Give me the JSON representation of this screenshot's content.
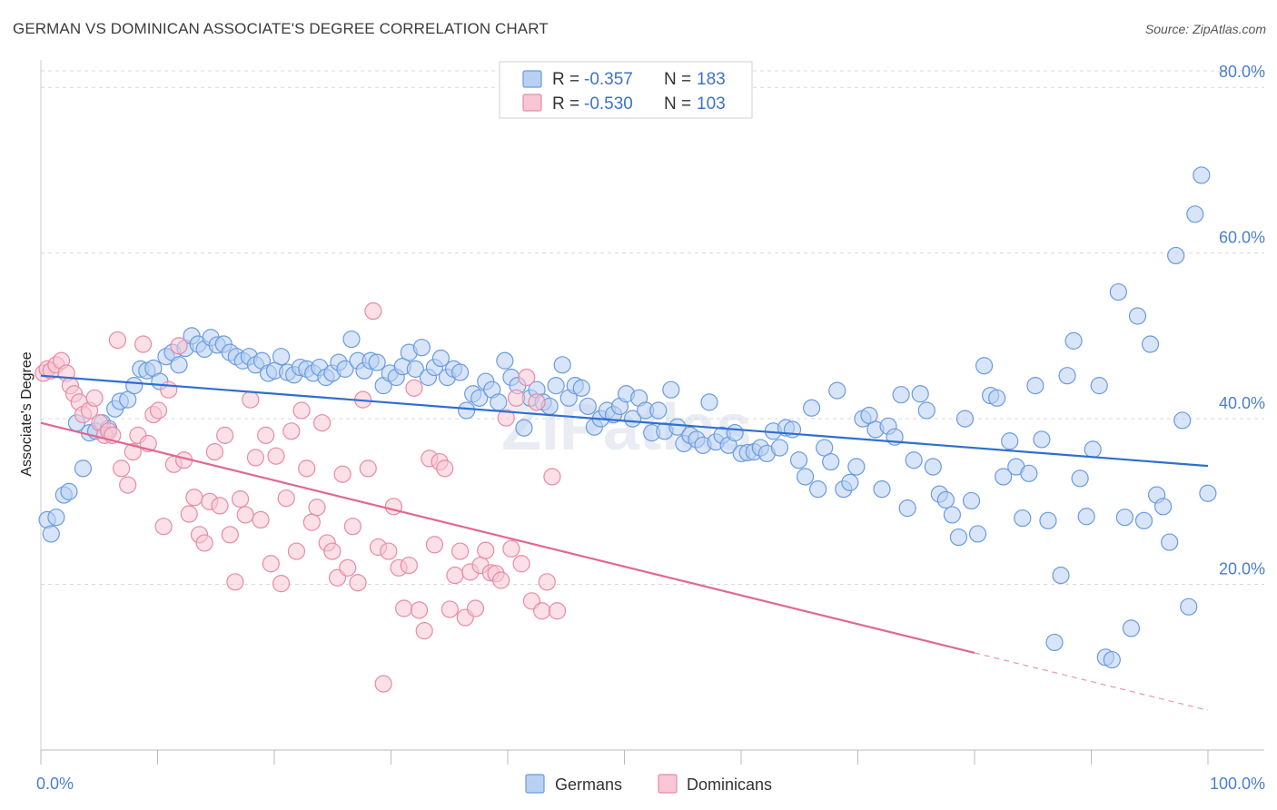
{
  "title": "GERMAN VS DOMINICAN ASSOCIATE'S DEGREE CORRELATION CHART",
  "source": "Source: ZipAtlas.com",
  "watermark": "ZIPatlas",
  "legend_top": [
    {
      "r_label": "R =",
      "r_value": "-0.357",
      "n_label": "N =",
      "n_value": "183",
      "fill": "#b8d0f2",
      "stroke": "#6a9be0"
    },
    {
      "r_label": "R =",
      "r_value": "-0.530",
      "n_label": "N =",
      "n_value": "103",
      "fill": "#f8c6d4",
      "stroke": "#e88aa6"
    }
  ],
  "legend_bottom": [
    {
      "label": "Germans",
      "fill": "#b8d0f2",
      "stroke": "#6a9be0"
    },
    {
      "label": "Dominicans",
      "fill": "#f8c6d4",
      "stroke": "#e88aa6"
    }
  ],
  "chart_data": {
    "type": "scatter",
    "ylabel": "Associate's Degree",
    "xlim": [
      0,
      100
    ],
    "ylim": [
      0,
      82
    ],
    "y_ticks": [
      {
        "value": 20,
        "label": "20.0%"
      },
      {
        "value": 40,
        "label": "40.0%"
      },
      {
        "value": 60,
        "label": "60.0%"
      },
      {
        "value": 80,
        "label": "80.0%"
      }
    ],
    "x_ticks": [
      {
        "value": 0,
        "label": "0.0%"
      },
      {
        "value": 100,
        "label": "100.0%"
      }
    ],
    "grid": true,
    "series": [
      {
        "name": "Germans",
        "color": "#6a9be0",
        "fill": "#b8d0f2",
        "trend_color": "#2f6fd0",
        "trend": {
          "x0": 0,
          "y0": 45.2,
          "x1": 100,
          "y1": 34.3,
          "solid_until": 100
        },
        "points": [
          [
            0.5,
            27.8
          ],
          [
            0.8,
            26.1
          ],
          [
            1.2,
            28.1
          ],
          [
            1.8,
            30.8
          ],
          [
            2.2,
            31.2
          ],
          [
            2.8,
            39.5
          ],
          [
            3.3,
            34.0
          ],
          [
            3.8,
            38.3
          ],
          [
            4.3,
            38.5
          ],
          [
            4.8,
            39.5
          ],
          [
            5.3,
            38.8
          ],
          [
            5.8,
            41.2
          ],
          [
            6.2,
            42.1
          ],
          [
            6.8,
            42.3
          ],
          [
            7.3,
            44.0
          ],
          [
            7.8,
            46.0
          ],
          [
            8.3,
            45.8
          ],
          [
            8.8,
            46.1
          ],
          [
            9.3,
            44.5
          ],
          [
            9.8,
            47.5
          ],
          [
            10.3,
            48.0
          ],
          [
            10.8,
            46.5
          ],
          [
            11.3,
            48.5
          ],
          [
            11.8,
            50.0
          ],
          [
            12.3,
            49.0
          ],
          [
            12.8,
            48.4
          ],
          [
            13.3,
            49.8
          ],
          [
            13.8,
            48.9
          ],
          [
            14.3,
            49.0
          ],
          [
            14.8,
            48.0
          ],
          [
            15.3,
            47.5
          ],
          [
            15.8,
            47.0
          ],
          [
            16.3,
            47.5
          ],
          [
            16.8,
            46.5
          ],
          [
            17.3,
            47.0
          ],
          [
            17.8,
            45.5
          ],
          [
            18.3,
            45.8
          ],
          [
            18.8,
            47.5
          ],
          [
            19.3,
            45.6
          ],
          [
            19.8,
            45.3
          ],
          [
            20.3,
            46.2
          ],
          [
            20.8,
            46.0
          ],
          [
            21.3,
            45.5
          ],
          [
            21.8,
            46.2
          ],
          [
            22.3,
            45.0
          ],
          [
            22.8,
            45.5
          ],
          [
            23.3,
            46.8
          ],
          [
            23.8,
            46.0
          ],
          [
            24.3,
            49.6
          ],
          [
            24.8,
            47.0
          ],
          [
            25.3,
            45.8
          ],
          [
            25.8,
            47.0
          ],
          [
            26.3,
            46.8
          ],
          [
            26.8,
            44.0
          ],
          [
            27.3,
            45.5
          ],
          [
            27.8,
            45.0
          ],
          [
            28.3,
            46.3
          ],
          [
            28.8,
            48.0
          ],
          [
            29.3,
            46.0
          ],
          [
            29.8,
            48.6
          ],
          [
            30.3,
            45.0
          ],
          [
            30.8,
            46.2
          ],
          [
            31.3,
            47.3
          ],
          [
            31.8,
            45.0
          ],
          [
            32.3,
            46.0
          ],
          [
            32.8,
            45.6
          ],
          [
            33.3,
            41.0
          ],
          [
            33.8,
            43.0
          ],
          [
            34.3,
            42.5
          ],
          [
            34.8,
            44.5
          ],
          [
            35.3,
            43.5
          ],
          [
            35.8,
            42.0
          ],
          [
            36.3,
            47.0
          ],
          [
            36.8,
            45.0
          ],
          [
            37.3,
            44.0
          ],
          [
            37.8,
            38.9
          ],
          [
            38.3,
            42.5
          ],
          [
            38.8,
            43.5
          ],
          [
            39.3,
            42.0
          ],
          [
            39.8,
            41.5
          ],
          [
            40.3,
            44.0
          ],
          [
            40.8,
            46.5
          ],
          [
            41.3,
            42.5
          ],
          [
            41.8,
            44.0
          ],
          [
            42.3,
            43.7
          ],
          [
            42.8,
            41.5
          ],
          [
            43.3,
            39.0
          ],
          [
            43.8,
            40.0
          ],
          [
            44.3,
            41.0
          ],
          [
            44.8,
            40.5
          ],
          [
            45.3,
            41.5
          ],
          [
            45.8,
            43.0
          ],
          [
            46.3,
            40.0
          ],
          [
            46.8,
            42.5
          ],
          [
            47.3,
            41.0
          ],
          [
            47.8,
            38.3
          ],
          [
            48.3,
            41.0
          ],
          [
            48.8,
            38.5
          ],
          [
            49.3,
            43.5
          ],
          [
            49.8,
            39.0
          ],
          [
            50.3,
            37.0
          ],
          [
            50.8,
            38.0
          ],
          [
            51.3,
            37.5
          ],
          [
            51.8,
            36.8
          ],
          [
            52.3,
            42.0
          ],
          [
            52.8,
            37.2
          ],
          [
            53.3,
            38.0
          ],
          [
            53.8,
            36.8
          ],
          [
            54.3,
            38.3
          ],
          [
            54.8,
            35.8
          ],
          [
            55.3,
            35.9
          ],
          [
            55.8,
            36.0
          ],
          [
            56.3,
            36.5
          ],
          [
            56.8,
            35.8
          ],
          [
            57.3,
            38.5
          ],
          [
            57.8,
            36.5
          ],
          [
            58.3,
            38.9
          ],
          [
            58.8,
            38.7
          ],
          [
            59.3,
            35.0
          ],
          [
            59.8,
            33.0
          ],
          [
            60.3,
            41.3
          ],
          [
            60.8,
            31.5
          ],
          [
            61.3,
            36.5
          ],
          [
            61.8,
            34.8
          ],
          [
            62.3,
            43.4
          ],
          [
            62.8,
            31.5
          ],
          [
            63.3,
            32.3
          ],
          [
            63.8,
            34.2
          ],
          [
            64.3,
            40.0
          ],
          [
            64.8,
            40.4
          ],
          [
            65.3,
            38.7
          ],
          [
            65.8,
            31.5
          ],
          [
            66.3,
            39.1
          ],
          [
            66.8,
            37.8
          ],
          [
            67.3,
            42.9
          ],
          [
            67.8,
            29.2
          ],
          [
            68.3,
            35.0
          ],
          [
            68.8,
            43.0
          ],
          [
            69.3,
            41.0
          ],
          [
            69.8,
            34.2
          ],
          [
            70.3,
            30.9
          ],
          [
            70.8,
            30.2
          ],
          [
            71.3,
            28.4
          ],
          [
            71.8,
            25.7
          ],
          [
            72.3,
            40.0
          ],
          [
            72.8,
            30.1
          ],
          [
            73.3,
            26.1
          ],
          [
            73.8,
            46.4
          ],
          [
            74.3,
            42.8
          ],
          [
            74.8,
            42.5
          ],
          [
            75.3,
            33.0
          ],
          [
            75.8,
            37.3
          ],
          [
            76.3,
            34.2
          ],
          [
            76.8,
            28.0
          ],
          [
            77.3,
            33.4
          ],
          [
            77.8,
            44.0
          ],
          [
            78.3,
            37.5
          ],
          [
            78.8,
            27.7
          ],
          [
            79.3,
            13.0
          ],
          [
            79.8,
            21.1
          ],
          [
            80.3,
            45.2
          ],
          [
            80.8,
            49.4
          ],
          [
            81.3,
            32.8
          ],
          [
            81.8,
            28.2
          ],
          [
            82.3,
            36.3
          ],
          [
            82.8,
            44.0
          ],
          [
            83.3,
            11.2
          ],
          [
            83.8,
            10.9
          ],
          [
            84.3,
            55.3
          ],
          [
            84.8,
            28.1
          ],
          [
            85.3,
            14.7
          ],
          [
            85.8,
            52.4
          ],
          [
            86.3,
            27.7
          ],
          [
            86.8,
            49.0
          ],
          [
            87.3,
            30.8
          ],
          [
            87.8,
            29.4
          ],
          [
            88.3,
            25.1
          ],
          [
            88.8,
            59.7
          ],
          [
            89.3,
            39.8
          ],
          [
            89.8,
            17.3
          ],
          [
            90.3,
            64.7
          ],
          [
            90.8,
            69.4
          ],
          [
            91.3,
            31.0
          ]
        ]
      },
      {
        "name": "Dominicans",
        "color": "#e88aa6",
        "fill": "#f8c6d4",
        "trend_color": "#e06890",
        "trend": {
          "x0": 0,
          "y0": 39.5,
          "x1": 100,
          "y1": 4.8,
          "solid_until": 80
        },
        "points": [
          [
            0.2,
            45.5
          ],
          [
            0.5,
            46.0
          ],
          [
            0.8,
            45.8
          ],
          [
            1.2,
            46.5
          ],
          [
            1.6,
            47.0
          ],
          [
            2.0,
            45.5
          ],
          [
            2.3,
            44.0
          ],
          [
            2.6,
            43.0
          ],
          [
            3.0,
            42.0
          ],
          [
            3.3,
            40.5
          ],
          [
            3.8,
            41.0
          ],
          [
            4.2,
            42.5
          ],
          [
            4.6,
            39.5
          ],
          [
            5.0,
            38.0
          ],
          [
            5.3,
            38.5
          ],
          [
            5.6,
            38.0
          ],
          [
            6.0,
            49.5
          ],
          [
            6.3,
            34.0
          ],
          [
            6.8,
            32.0
          ],
          [
            7.2,
            36.0
          ],
          [
            7.6,
            38.0
          ],
          [
            8.0,
            49.0
          ],
          [
            8.4,
            37.0
          ],
          [
            8.8,
            40.5
          ],
          [
            9.2,
            41.0
          ],
          [
            9.6,
            27.0
          ],
          [
            10.0,
            43.5
          ],
          [
            10.4,
            34.5
          ],
          [
            10.8,
            48.8
          ],
          [
            11.2,
            35.0
          ],
          [
            11.6,
            28.5
          ],
          [
            12.0,
            30.5
          ],
          [
            12.4,
            26.0
          ],
          [
            12.8,
            25.0
          ],
          [
            13.2,
            30.0
          ],
          [
            13.6,
            36.0
          ],
          [
            14.0,
            29.5
          ],
          [
            14.4,
            38.0
          ],
          [
            14.8,
            26.0
          ],
          [
            15.2,
            20.3
          ],
          [
            15.6,
            30.3
          ],
          [
            16.0,
            28.4
          ],
          [
            16.4,
            42.3
          ],
          [
            16.8,
            35.3
          ],
          [
            17.2,
            27.8
          ],
          [
            17.6,
            38.0
          ],
          [
            18.0,
            22.5
          ],
          [
            18.4,
            35.5
          ],
          [
            18.8,
            20.1
          ],
          [
            19.2,
            30.4
          ],
          [
            19.6,
            38.5
          ],
          [
            20.0,
            24.0
          ],
          [
            20.4,
            41.0
          ],
          [
            20.8,
            34.0
          ],
          [
            21.2,
            27.5
          ],
          [
            21.6,
            29.3
          ],
          [
            22.0,
            39.5
          ],
          [
            22.4,
            25.0
          ],
          [
            22.8,
            24.0
          ],
          [
            23.2,
            20.8
          ],
          [
            23.6,
            33.3
          ],
          [
            24.0,
            22.0
          ],
          [
            24.4,
            27.0
          ],
          [
            24.8,
            20.2
          ],
          [
            25.2,
            42.3
          ],
          [
            25.6,
            34.0
          ],
          [
            26.0,
            53.0
          ],
          [
            26.4,
            24.5
          ],
          [
            26.8,
            8.0
          ],
          [
            27.2,
            24.0
          ],
          [
            27.6,
            29.4
          ],
          [
            28.0,
            22.0
          ],
          [
            28.4,
            17.1
          ],
          [
            28.8,
            22.3
          ],
          [
            29.2,
            43.7
          ],
          [
            29.6,
            16.9
          ],
          [
            30.0,
            14.4
          ],
          [
            30.4,
            35.2
          ],
          [
            30.8,
            24.8
          ],
          [
            31.2,
            34.8
          ],
          [
            31.6,
            34.0
          ],
          [
            32.0,
            17.0
          ],
          [
            32.4,
            21.1
          ],
          [
            32.8,
            24.0
          ],
          [
            33.2,
            16.0
          ],
          [
            33.6,
            21.5
          ],
          [
            34.0,
            17.1
          ],
          [
            34.4,
            22.3
          ],
          [
            34.8,
            24.1
          ],
          [
            35.2,
            21.4
          ],
          [
            35.6,
            21.3
          ],
          [
            36.0,
            20.5
          ],
          [
            36.4,
            40.1
          ],
          [
            36.8,
            24.3
          ],
          [
            37.2,
            42.5
          ],
          [
            37.6,
            22.5
          ],
          [
            38.0,
            45.0
          ],
          [
            38.4,
            18.0
          ],
          [
            38.8,
            42.0
          ],
          [
            39.2,
            16.8
          ],
          [
            39.6,
            20.3
          ],
          [
            40.0,
            33.0
          ],
          [
            40.4,
            16.8
          ]
        ]
      }
    ]
  }
}
